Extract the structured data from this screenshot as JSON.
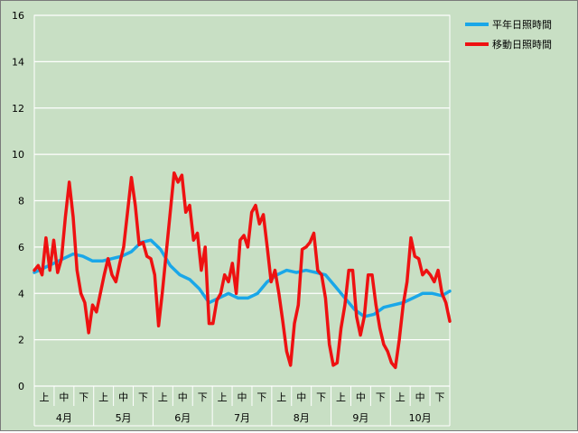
{
  "chart_data": {
    "type": "line",
    "title": "",
    "xlabel": "",
    "ylabel": "",
    "ylim": [
      0,
      16
    ],
    "yticks": [
      0,
      2,
      4,
      6,
      8,
      10,
      12,
      14,
      16
    ],
    "grid": true,
    "legend_position": "top-right",
    "x_sub_labels": [
      "上",
      "中",
      "下",
      "上",
      "中",
      "下",
      "上",
      "中",
      "下",
      "上",
      "中",
      "下",
      "上",
      "中",
      "下",
      "上",
      "中",
      "下",
      "上",
      "中",
      "下"
    ],
    "x_month_labels": [
      "4月",
      "5月",
      "6月",
      "7月",
      "8月",
      "9月",
      "10月"
    ],
    "x_range_days": [
      0,
      214
    ],
    "series": [
      {
        "name": "平年日照時間",
        "color": "#1aa7e8",
        "x": [
          0,
          5,
          10,
          15,
          20,
          25,
          30,
          35,
          40,
          45,
          50,
          55,
          60,
          65,
          70,
          75,
          80,
          85,
          90,
          95,
          100,
          105,
          110,
          115,
          120,
          125,
          130,
          135,
          140,
          145,
          150,
          155,
          160,
          165,
          170,
          175,
          180,
          185,
          190,
          195,
          200,
          205,
          210,
          214
        ],
        "y": [
          4.9,
          5.1,
          5.3,
          5.5,
          5.7,
          5.6,
          5.4,
          5.4,
          5.5,
          5.6,
          5.8,
          6.2,
          6.3,
          5.9,
          5.2,
          4.8,
          4.6,
          4.2,
          3.6,
          3.8,
          4.0,
          3.8,
          3.8,
          4.0,
          4.5,
          4.8,
          5.0,
          4.9,
          5.0,
          4.9,
          4.8,
          4.3,
          3.8,
          3.3,
          3.0,
          3.1,
          3.4,
          3.5,
          3.6,
          3.8,
          4.0,
          4.0,
          3.9,
          4.1
        ]
      },
      {
        "name": "移動日照時間",
        "color": "#ee1111",
        "x": [
          0,
          2,
          4,
          6,
          8,
          10,
          12,
          14,
          16,
          18,
          20,
          22,
          24,
          26,
          28,
          30,
          32,
          34,
          36,
          38,
          40,
          42,
          44,
          46,
          48,
          50,
          52,
          54,
          56,
          58,
          60,
          62,
          64,
          66,
          68,
          70,
          72,
          74,
          76,
          78,
          80,
          82,
          84,
          86,
          88,
          90,
          92,
          94,
          96,
          98,
          100,
          102,
          104,
          106,
          108,
          110,
          112,
          114,
          116,
          118,
          120,
          122,
          124,
          126,
          128,
          130,
          132,
          134,
          136,
          138,
          140,
          142,
          144,
          146,
          148,
          150,
          152,
          154,
          156,
          158,
          160,
          162,
          164,
          166,
          168,
          170,
          172,
          174,
          176,
          178,
          180,
          182,
          184,
          186,
          188,
          190,
          192,
          194,
          196,
          198,
          200,
          202,
          204,
          206,
          208,
          210,
          212,
          214
        ],
        "y": [
          5.0,
          5.2,
          4.8,
          6.4,
          5.0,
          6.3,
          4.9,
          5.5,
          7.3,
          8.8,
          7.3,
          5.0,
          4.0,
          3.6,
          2.3,
          3.5,
          3.2,
          4.0,
          4.8,
          5.5,
          4.8,
          4.5,
          5.3,
          6.0,
          7.5,
          9.0,
          7.8,
          6.1,
          6.2,
          5.6,
          5.5,
          4.8,
          2.6,
          4.1,
          5.8,
          7.5,
          9.2,
          8.8,
          9.1,
          7.5,
          7.8,
          6.3,
          6.6,
          5.0,
          6.0,
          2.7,
          2.7,
          3.7,
          4.0,
          4.8,
          4.5,
          5.3,
          4.0,
          6.3,
          6.5,
          6.0,
          7.5,
          7.8,
          7.0,
          7.4,
          6.0,
          4.5,
          5.0,
          4.0,
          2.8,
          1.5,
          0.9,
          2.7,
          3.5,
          5.9,
          6.0,
          6.2,
          6.6,
          5.0,
          4.8,
          3.8,
          1.8,
          0.9,
          1.0,
          2.5,
          3.5,
          5.0,
          5.0,
          3.0,
          2.2,
          3.0,
          4.8,
          4.8,
          3.5,
          2.5,
          1.8,
          1.5,
          1.0,
          0.8,
          2.0,
          3.5,
          4.5,
          6.4,
          5.6,
          5.5,
          4.8,
          5.0,
          4.8,
          4.5,
          5.0,
          4.0,
          3.6,
          2.8
        ]
      }
    ]
  }
}
